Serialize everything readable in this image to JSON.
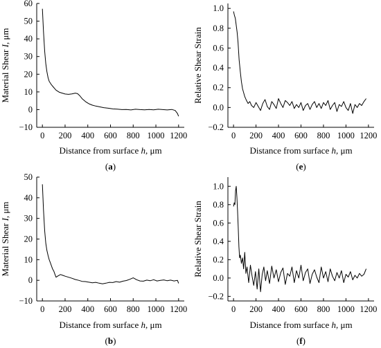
{
  "chart_data": [
    {
      "id": "a",
      "type": "line",
      "panel_label": "(a)",
      "xlabel": "Distance from surface h, μm",
      "ylabel": "Material Shear I, μm",
      "xlim": [
        -50,
        1250
      ],
      "ylim": [
        -10,
        60
      ],
      "xticks": [
        0,
        200,
        400,
        600,
        800,
        1000,
        1200
      ],
      "yticks": [
        -10,
        0,
        10,
        20,
        30,
        40,
        50,
        60
      ],
      "x_tick_labels": [
        "0",
        "200",
        "400",
        "600",
        "800",
        "1000",
        "1200"
      ],
      "y_tick_labels": [
        "−10",
        "0",
        "10",
        "20",
        "30",
        "40",
        "50",
        "60"
      ],
      "grid": false,
      "series": [
        {
          "x": [
            0,
            10,
            20,
            30,
            40,
            50,
            60,
            80,
            100,
            120,
            150,
            180,
            200,
            230,
            260,
            290,
            310,
            330,
            350,
            380,
            410,
            440,
            470,
            500,
            540,
            580,
            620,
            660,
            700,
            740,
            780,
            820,
            860,
            900,
            940,
            980,
            1020,
            1060,
            1100,
            1140,
            1170,
            1190,
            1200
          ],
          "y": [
            57,
            44,
            33,
            26,
            21.5,
            18,
            16,
            14,
            12.5,
            11,
            9.8,
            9.2,
            8.8,
            8.6,
            8.9,
            9.3,
            9.0,
            7.8,
            6.2,
            4.5,
            3.3,
            2.5,
            2.0,
            1.6,
            1.1,
            0.8,
            0.4,
            0.3,
            0.0,
            0.1,
            -0.2,
            0.2,
            0.0,
            -0.1,
            0.1,
            -0.1,
            0.2,
            0.0,
            -0.2,
            0.1,
            -0.5,
            -2.2,
            -3.8
          ]
        }
      ]
    },
    {
      "id": "e",
      "type": "line",
      "panel_label": "(e)",
      "xlabel": "Distance from surface h, μm",
      "ylabel": "Relative Shear Strain",
      "xlim": [
        -50,
        1250
      ],
      "ylim": [
        -0.2,
        1.05
      ],
      "xticks": [
        0,
        200,
        400,
        600,
        800,
        1000,
        1200
      ],
      "yticks": [
        -0.2,
        0.0,
        0.2,
        0.4,
        0.6,
        0.8,
        1.0
      ],
      "x_tick_labels": [
        "0",
        "200",
        "400",
        "600",
        "800",
        "1000",
        "1200"
      ],
      "y_tick_labels": [
        "−0.2",
        "0.0",
        "0.2",
        "0.4",
        "0.6",
        "0.8",
        "1.0"
      ],
      "grid": false,
      "series": [
        {
          "x": [
            0,
            8,
            16,
            24,
            32,
            40,
            50,
            60,
            70,
            80,
            90,
            100,
            115,
            130,
            145,
            160,
            180,
            200,
            220,
            240,
            260,
            280,
            300,
            320,
            340,
            360,
            380,
            400,
            420,
            440,
            460,
            480,
            500,
            520,
            540,
            560,
            580,
            600,
            620,
            640,
            660,
            680,
            700,
            720,
            740,
            760,
            780,
            800,
            820,
            840,
            860,
            880,
            900,
            920,
            940,
            960,
            980,
            1000,
            1020,
            1040,
            1060,
            1080,
            1100,
            1120,
            1140,
            1160,
            1180
          ],
          "y": [
            0.97,
            0.93,
            0.9,
            0.83,
            0.76,
            0.66,
            0.48,
            0.36,
            0.26,
            0.19,
            0.15,
            0.11,
            0.07,
            0.04,
            0.06,
            0.02,
            0.0,
            0.05,
            0.01,
            -0.03,
            0.04,
            0.08,
            0.01,
            -0.02,
            0.06,
            0.03,
            -0.01,
            0.09,
            0.04,
            0.0,
            0.07,
            0.05,
            0.02,
            0.06,
            -0.01,
            0.03,
            0.0,
            0.05,
            -0.03,
            0.02,
            0.04,
            -0.02,
            0.03,
            0.06,
            0.0,
            0.04,
            -0.01,
            0.05,
            0.02,
            0.07,
            -0.02,
            0.02,
            0.05,
            -0.04,
            0.03,
            0.01,
            0.06,
            0.0,
            -0.03,
            0.04,
            -0.06,
            0.03,
            0.0,
            0.04,
            0.02,
            0.06,
            0.09
          ]
        }
      ]
    },
    {
      "id": "b",
      "type": "line",
      "panel_label": "(b)",
      "xlabel": "Distance from surface h, μm",
      "ylabel": "Material Shear I, μm",
      "xlim": [
        -50,
        1250
      ],
      "ylim": [
        -10,
        50
      ],
      "xticks": [
        0,
        200,
        400,
        600,
        800,
        1000,
        1200
      ],
      "yticks": [
        -10,
        0,
        10,
        20,
        30,
        40,
        50
      ],
      "x_tick_labels": [
        "0",
        "200",
        "400",
        "600",
        "800",
        "1000",
        "1200"
      ],
      "y_tick_labels": [
        "−10",
        "0",
        "10",
        "20",
        "30",
        "40",
        "50"
      ],
      "grid": false,
      "series": [
        {
          "x": [
            0,
            10,
            20,
            30,
            40,
            50,
            60,
            70,
            80,
            90,
            100,
            110,
            120,
            140,
            160,
            180,
            200,
            230,
            260,
            290,
            320,
            350,
            380,
            410,
            440,
            470,
            500,
            530,
            560,
            590,
            620,
            650,
            680,
            710,
            740,
            770,
            800,
            830,
            860,
            890,
            920,
            950,
            980,
            1010,
            1040,
            1070,
            1100,
            1130,
            1160,
            1190,
            1200
          ],
          "y": [
            46.5,
            34,
            24,
            18,
            14.5,
            12,
            10,
            8.5,
            7,
            5.5,
            4.5,
            3,
            1.5,
            2.2,
            2.8,
            2.4,
            2.0,
            1.5,
            1.0,
            0.4,
            0.0,
            -0.5,
            -0.6,
            -0.9,
            -1.2,
            -1.0,
            -1.4,
            -1.7,
            -1.4,
            -1.0,
            -1.1,
            -0.6,
            -0.9,
            -0.4,
            -0.1,
            0.5,
            1.2,
            0.3,
            -0.3,
            -0.4,
            0.1,
            -0.2,
            0.3,
            -0.3,
            0.0,
            0.2,
            -0.2,
            0.1,
            -0.3,
            0.0,
            -1.5
          ]
        }
      ]
    },
    {
      "id": "f",
      "type": "line",
      "panel_label": "(f)",
      "xlabel": "Distance from surface h, μm",
      "ylabel": "Relative Shear Strain",
      "xlim": [
        -50,
        1250
      ],
      "ylim": [
        -0.25,
        1.1
      ],
      "xticks": [
        0,
        200,
        400,
        600,
        800,
        1000,
        1200
      ],
      "yticks": [
        -0.2,
        0.0,
        0.2,
        0.4,
        0.6,
        0.8,
        1.0
      ],
      "x_tick_labels": [
        "0",
        "200",
        "400",
        "600",
        "800",
        "1000",
        "1200"
      ],
      "y_tick_labels": [
        "−0.2",
        "0.0",
        "0.2",
        "0.4",
        "0.6",
        "0.8",
        "1.0"
      ],
      "grid": false,
      "series": [
        {
          "x": [
            0,
            6,
            12,
            18,
            24,
            30,
            36,
            42,
            48,
            54,
            60,
            70,
            80,
            90,
            100,
            110,
            120,
            135,
            150,
            165,
            180,
            195,
            210,
            225,
            240,
            255,
            270,
            285,
            300,
            320,
            340,
            360,
            380,
            400,
            420,
            440,
            460,
            480,
            500,
            520,
            540,
            560,
            580,
            600,
            620,
            640,
            660,
            680,
            700,
            720,
            740,
            760,
            780,
            800,
            820,
            840,
            860,
            880,
            900,
            920,
            940,
            960,
            980,
            1000,
            1020,
            1040,
            1060,
            1080,
            1100,
            1120,
            1140,
            1160,
            1180
          ],
          "y": [
            0.78,
            0.82,
            0.8,
            0.95,
            1.0,
            0.88,
            0.72,
            0.55,
            0.34,
            0.22,
            0.25,
            0.16,
            0.22,
            0.1,
            0.28,
            0.05,
            0.12,
            -0.05,
            0.14,
            0.02,
            -0.08,
            0.07,
            -0.12,
            0.1,
            -0.15,
            0.04,
            0.12,
            -0.03,
            0.08,
            -0.06,
            0.13,
            0.0,
            0.09,
            -0.04,
            0.06,
            0.11,
            -0.07,
            0.05,
            0.02,
            0.12,
            -0.05,
            0.08,
            0.0,
            0.14,
            -0.03,
            0.06,
            0.1,
            -0.06,
            0.04,
            0.09,
            0.01,
            -0.05,
            0.12,
            0.0,
            0.07,
            -0.04,
            0.1,
            0.02,
            -0.03,
            0.06,
            0.0,
            0.08,
            -0.05,
            0.04,
            0.01,
            0.07,
            -0.02,
            0.03,
            0.0,
            0.05,
            0.02,
            0.04,
            0.1
          ]
        }
      ]
    }
  ]
}
